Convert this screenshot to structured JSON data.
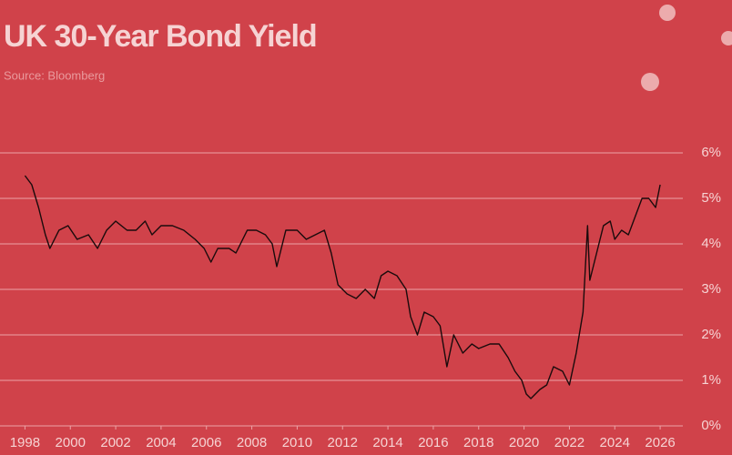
{
  "chart_data": {
    "type": "line",
    "title": "UK 30-Year Bond Yield",
    "subtitle": "Source: Bloomberg",
    "x": [
      1998.0,
      1998.3,
      1998.6,
      1998.9,
      1999.1,
      1999.5,
      1999.9,
      2000.3,
      2000.8,
      2001.2,
      2001.6,
      2002.0,
      2002.5,
      2002.9,
      2003.3,
      2003.6,
      2004.0,
      2004.5,
      2005.0,
      2005.5,
      2005.9,
      2006.2,
      2006.5,
      2007.0,
      2007.3,
      2007.8,
      2008.2,
      2008.6,
      2008.9,
      2009.1,
      2009.5,
      2010.0,
      2010.4,
      2010.8,
      2011.2,
      2011.5,
      2011.8,
      2012.2,
      2012.6,
      2013.0,
      2013.4,
      2013.7,
      2014.0,
      2014.4,
      2014.8,
      2015.0,
      2015.3,
      2015.6,
      2016.0,
      2016.3,
      2016.6,
      2016.9,
      2017.3,
      2017.7,
      2018.0,
      2018.5,
      2018.9,
      2019.3,
      2019.6,
      2019.9,
      2020.1,
      2020.3,
      2020.7,
      2021.0,
      2021.3,
      2021.7,
      2022.0,
      2022.3,
      2022.6,
      2022.8,
      2022.9,
      2023.2,
      2023.5,
      2023.8,
      2024.0,
      2024.3,
      2024.6,
      2024.9,
      2025.2,
      2025.5,
      2025.8,
      2026.0
    ],
    "series": [
      {
        "name": "UK 30-Year Bond Yield",
        "color": "#1a0b0c",
        "values": [
          5.5,
          5.3,
          4.8,
          4.2,
          3.9,
          4.3,
          4.4,
          4.1,
          4.2,
          3.9,
          4.3,
          4.5,
          4.3,
          4.3,
          4.5,
          4.2,
          4.4,
          4.4,
          4.3,
          4.1,
          3.9,
          3.6,
          3.9,
          3.9,
          3.8,
          4.3,
          4.3,
          4.2,
          4.0,
          3.5,
          4.3,
          4.3,
          4.1,
          4.2,
          4.3,
          3.8,
          3.1,
          2.9,
          2.8,
          3.0,
          2.8,
          3.3,
          3.4,
          3.3,
          3.0,
          2.4,
          2.0,
          2.5,
          2.4,
          2.2,
          1.3,
          2.0,
          1.6,
          1.8,
          1.7,
          1.8,
          1.8,
          1.5,
          1.2,
          1.0,
          0.7,
          0.6,
          0.8,
          0.9,
          1.3,
          1.2,
          0.9,
          1.6,
          2.5,
          4.4,
          3.2,
          3.8,
          4.4,
          4.5,
          4.1,
          4.3,
          4.2,
          4.6,
          5.0,
          5.0,
          4.8,
          5.3
        ]
      }
    ],
    "xlim": [
      1996.9,
      2027
    ],
    "xticks": [
      1998,
      2000,
      2002,
      2004,
      2006,
      2008,
      2010,
      2012,
      2014,
      2016,
      2018,
      2020,
      2022,
      2024,
      2026
    ],
    "ylim": [
      0,
      6
    ],
    "yticks": [
      {
        "value": 0,
        "label": "0%"
      },
      {
        "value": 1,
        "label": "1%"
      },
      {
        "value": 2,
        "label": "2%"
      },
      {
        "value": 3,
        "label": "3%"
      },
      {
        "value": 4,
        "label": "4%"
      },
      {
        "value": 5,
        "label": "5%"
      },
      {
        "value": 6,
        "label": "6%"
      }
    ],
    "grid": true
  }
}
